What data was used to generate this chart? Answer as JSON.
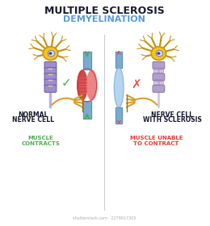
{
  "title_line1": "MULTIPLE SCLEROSIS",
  "title_line2": "DEMYELINATION",
  "title_line1_color": "#1a1a2e",
  "title_line2_color": "#5b9bd5",
  "label_left_line1": "NORMAL",
  "label_left_line2": "NERVE CELL",
  "label_right_line1": "NERVE CELL",
  "label_right_line2": "WITH SCLEROSIS",
  "caption_left": "MUSCLE\nCONTRACTS",
  "caption_right": "MUSCLE UNABLE\nTO CONTRACT",
  "label_color": "#1a1a2e",
  "caption_left_color": "#4caf50",
  "caption_right_color": "#e53935",
  "check_color": "#4caf50",
  "cross_color": "#e85050",
  "divider_color": "#cccccc",
  "bg_color": "#ffffff",
  "neuron_body_color": "#f5c518",
  "neuron_outline_color": "#c8960a",
  "dendrite_color": "#c49010",
  "myelin_healthy_color": "#9b8fd4",
  "myelin_healthy_outline": "#7a5fa0",
  "myelin_damaged_color": "#b0a0cc",
  "myelin_damaged_outline": "#8a70a8",
  "axon_color": "#b8a0d0",
  "axon_node_color": "#e8d080",
  "muscle_red1": "#cc3333",
  "muscle_red2": "#e87777",
  "muscle_red3": "#f0a0a0",
  "muscle_blue1": "#7aaad0",
  "muscle_blue2": "#aaccee",
  "muscle_blue3": "#d0e8f8",
  "tendon_color": "#d4a030",
  "tendon_dark": "#a07010",
  "arrow_healthy_color": "#4caf50",
  "arrow_damaged_color": "#e85050",
  "watermark": "shutterstock.com · 2279017305",
  "watermark_color": "#aaaaaa"
}
